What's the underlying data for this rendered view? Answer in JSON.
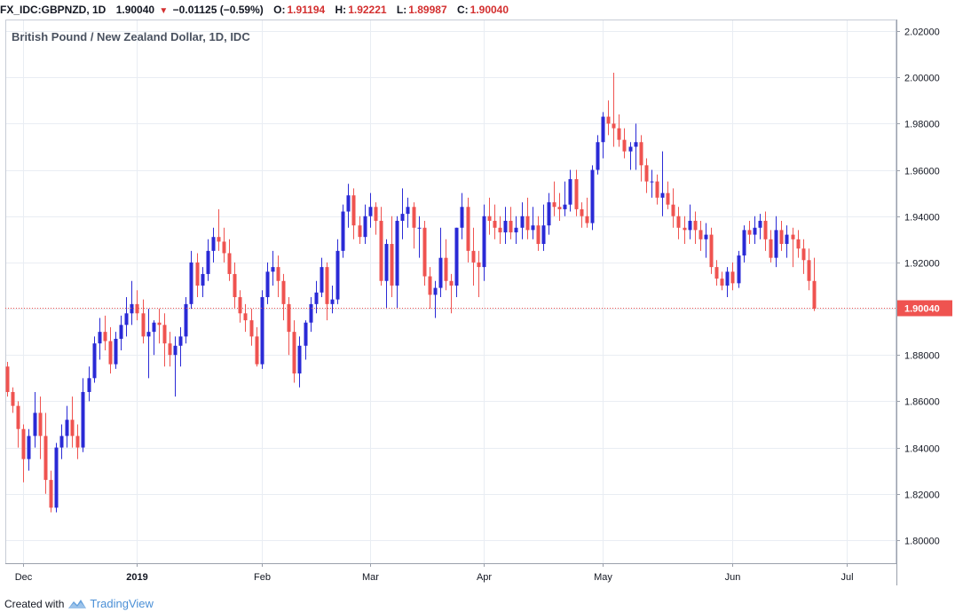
{
  "header": {
    "symbol": "FX_IDC:GBPNZD, 1D",
    "last": "1.90040",
    "change": "−0.01125 (−0.59%)",
    "open_label": "O:",
    "open": "1.91194",
    "high_label": "H:",
    "high": "1.92221",
    "low_label": "L:",
    "low": "1.89987",
    "close_label": "C:",
    "close": "1.90040",
    "direction_icon": "triangle-down-icon"
  },
  "footer": {
    "created_with": "Created with",
    "brand": "TradingView",
    "logo_icon": "tradingview-logo-icon"
  },
  "colors": {
    "up": "#2a2ad6",
    "down": "#ef5350",
    "grid": "#e9edf3",
    "axis_text": "#131722",
    "price_tag": "#ef5350"
  },
  "chart_data": {
    "type": "candlestick",
    "title": "British Pound / New Zealand Dollar, 1D, IDC",
    "ylim": [
      1.79,
      2.025
    ],
    "y_ticks": [
      1.8,
      1.82,
      1.84,
      1.86,
      1.88,
      1.9,
      1.92,
      1.94,
      1.96,
      1.98,
      2.0,
      2.02
    ],
    "y_tick_labels": [
      "1.80000",
      "1.82000",
      "1.84000",
      "1.86000",
      "1.88000",
      "1.90000",
      "1.92000",
      "1.94000",
      "1.96000",
      "1.98000",
      "2.00000",
      "2.02000"
    ],
    "x_labels": [
      {
        "text": "Dec",
        "index": 3
      },
      {
        "text": "2019",
        "index": 24
      },
      {
        "text": "Feb",
        "index": 47
      },
      {
        "text": "Mar",
        "index": 67
      },
      {
        "text": "Apr",
        "index": 88
      },
      {
        "text": "May",
        "index": 110
      },
      {
        "text": "Jun",
        "index": 134
      },
      {
        "text": "Jul",
        "index": 155
      }
    ],
    "last_price": 1.9004,
    "last_price_label": "1.90040",
    "grid": true,
    "candles": [
      [
        1.875,
        1.877,
        1.862,
        1.864
      ],
      [
        1.864,
        1.866,
        1.855,
        1.858
      ],
      [
        1.858,
        1.86,
        1.84,
        1.848
      ],
      [
        1.848,
        1.85,
        1.825,
        1.835
      ],
      [
        1.835,
        1.848,
        1.83,
        1.845
      ],
      [
        1.845,
        1.864,
        1.84,
        1.855
      ],
      [
        1.855,
        1.862,
        1.835,
        1.845
      ],
      [
        1.845,
        1.855,
        1.82,
        1.826
      ],
      [
        1.826,
        1.83,
        1.812,
        1.814
      ],
      [
        1.814,
        1.842,
        1.812,
        1.84
      ],
      [
        1.84,
        1.85,
        1.835,
        1.845
      ],
      [
        1.845,
        1.858,
        1.84,
        1.852
      ],
      [
        1.852,
        1.862,
        1.84,
        1.845
      ],
      [
        1.845,
        1.85,
        1.835,
        1.84
      ],
      [
        1.84,
        1.87,
        1.838,
        1.864
      ],
      [
        1.864,
        1.875,
        1.86,
        1.87
      ],
      [
        1.87,
        1.888,
        1.868,
        1.885
      ],
      [
        1.885,
        1.896,
        1.878,
        1.89
      ],
      [
        1.89,
        1.897,
        1.882,
        1.886
      ],
      [
        1.886,
        1.892,
        1.872,
        1.876
      ],
      [
        1.876,
        1.89,
        1.874,
        1.887
      ],
      [
        1.887,
        1.897,
        1.882,
        1.893
      ],
      [
        1.893,
        1.905,
        1.888,
        1.898
      ],
      [
        1.898,
        1.912,
        1.893,
        1.902
      ],
      [
        1.902,
        1.908,
        1.895,
        1.898
      ],
      [
        1.898,
        1.904,
        1.885,
        1.888
      ],
      [
        1.888,
        1.9,
        1.87,
        1.89
      ],
      [
        1.89,
        1.895,
        1.88,
        1.894
      ],
      [
        1.894,
        1.9,
        1.885,
        1.893
      ],
      [
        1.893,
        1.898,
        1.875,
        1.885
      ],
      [
        1.885,
        1.89,
        1.875,
        1.88
      ],
      [
        1.88,
        1.888,
        1.862,
        1.884
      ],
      [
        1.884,
        1.892,
        1.875,
        1.888
      ],
      [
        1.888,
        1.905,
        1.885,
        1.902
      ],
      [
        1.902,
        1.925,
        1.9,
        1.92
      ],
      [
        1.92,
        1.924,
        1.905,
        1.91
      ],
      [
        1.91,
        1.918,
        1.905,
        1.915
      ],
      [
        1.915,
        1.93,
        1.912,
        1.925
      ],
      [
        1.925,
        1.935,
        1.92,
        1.931
      ],
      [
        1.931,
        1.943,
        1.925,
        1.929
      ],
      [
        1.929,
        1.935,
        1.92,
        1.924
      ],
      [
        1.924,
        1.93,
        1.912,
        1.915
      ],
      [
        1.915,
        1.92,
        1.9,
        1.905
      ],
      [
        1.905,
        1.908,
        1.894,
        1.898
      ],
      [
        1.898,
        1.902,
        1.89,
        1.895
      ],
      [
        1.895,
        1.9,
        1.884,
        1.888
      ],
      [
        1.888,
        1.892,
        1.875,
        1.876
      ],
      [
        1.876,
        1.908,
        1.874,
        1.905
      ],
      [
        1.905,
        1.92,
        1.902,
        1.916
      ],
      [
        1.916,
        1.925,
        1.91,
        1.918
      ],
      [
        1.918,
        1.923,
        1.905,
        1.912
      ],
      [
        1.912,
        1.915,
        1.895,
        1.902
      ],
      [
        1.902,
        1.905,
        1.88,
        1.89
      ],
      [
        1.89,
        1.895,
        1.868,
        1.872
      ],
      [
        1.872,
        1.888,
        1.866,
        1.884
      ],
      [
        1.884,
        1.895,
        1.878,
        1.894
      ],
      [
        1.894,
        1.905,
        1.89,
        1.902
      ],
      [
        1.902,
        1.912,
        1.898,
        1.907
      ],
      [
        1.907,
        1.922,
        1.905,
        1.918
      ],
      [
        1.918,
        1.92,
        1.895,
        1.902
      ],
      [
        1.902,
        1.91,
        1.898,
        1.904
      ],
      [
        1.904,
        1.93,
        1.902,
        1.925
      ],
      [
        1.925,
        1.945,
        1.922,
        1.942
      ],
      [
        1.942,
        1.954,
        1.935,
        1.949
      ],
      [
        1.949,
        1.952,
        1.93,
        1.936
      ],
      [
        1.936,
        1.94,
        1.928,
        1.931
      ],
      [
        1.931,
        1.945,
        1.928,
        1.94
      ],
      [
        1.94,
        1.95,
        1.935,
        1.944
      ],
      [
        1.944,
        1.946,
        1.932,
        1.938
      ],
      [
        1.938,
        1.944,
        1.91,
        1.912
      ],
      [
        1.912,
        1.93,
        1.9,
        1.928
      ],
      [
        1.928,
        1.94,
        1.905,
        1.91
      ],
      [
        1.91,
        1.94,
        1.9,
        1.938
      ],
      [
        1.938,
        1.952,
        1.93,
        1.941
      ],
      [
        1.941,
        1.948,
        1.935,
        1.944
      ],
      [
        1.944,
        1.946,
        1.926,
        1.935
      ],
      [
        1.935,
        1.94,
        1.922,
        1.935
      ],
      [
        1.935,
        1.938,
        1.91,
        1.914
      ],
      [
        1.914,
        1.918,
        1.9,
        1.906
      ],
      [
        1.906,
        1.912,
        1.896,
        1.909
      ],
      [
        1.909,
        1.935,
        1.905,
        1.922
      ],
      [
        1.922,
        1.93,
        1.908,
        1.912
      ],
      [
        1.912,
        1.915,
        1.898,
        1.91
      ],
      [
        1.91,
        1.935,
        1.905,
        1.935
      ],
      [
        1.935,
        1.95,
        1.93,
        1.944
      ],
      [
        1.944,
        1.948,
        1.92,
        1.925
      ],
      [
        1.925,
        1.935,
        1.91,
        1.92
      ],
      [
        1.92,
        1.925,
        1.905,
        1.918
      ],
      [
        1.918,
        1.945,
        1.912,
        1.94
      ],
      [
        1.94,
        1.948,
        1.932,
        1.938
      ],
      [
        1.938,
        1.945,
        1.93,
        1.935
      ],
      [
        1.935,
        1.94,
        1.928,
        1.933
      ],
      [
        1.933,
        1.944,
        1.928,
        1.938
      ],
      [
        1.938,
        1.944,
        1.93,
        1.933
      ],
      [
        1.933,
        1.94,
        1.928,
        1.935
      ],
      [
        1.935,
        1.946,
        1.93,
        1.94
      ],
      [
        1.94,
        1.948,
        1.93,
        1.934
      ],
      [
        1.934,
        1.944,
        1.93,
        1.936
      ],
      [
        1.936,
        1.94,
        1.925,
        1.928
      ],
      [
        1.928,
        1.945,
        1.925,
        1.936
      ],
      [
        1.936,
        1.95,
        1.932,
        1.946
      ],
      [
        1.946,
        1.955,
        1.94,
        1.944
      ],
      [
        1.944,
        1.95,
        1.938,
        1.943
      ],
      [
        1.943,
        1.955,
        1.94,
        1.945
      ],
      [
        1.945,
        1.96,
        1.942,
        1.956
      ],
      [
        1.956,
        1.96,
        1.94,
        1.943
      ],
      [
        1.943,
        1.946,
        1.935,
        1.94
      ],
      [
        1.94,
        1.948,
        1.935,
        1.937
      ],
      [
        1.937,
        1.962,
        1.934,
        1.96
      ],
      [
        1.96,
        1.975,
        1.958,
        1.972
      ],
      [
        1.972,
        1.985,
        1.965,
        1.983
      ],
      [
        1.983,
        1.99,
        1.975,
        1.98
      ],
      [
        1.98,
        2.002,
        1.97,
        1.978
      ],
      [
        1.978,
        1.984,
        1.97,
        1.973
      ],
      [
        1.973,
        1.978,
        1.965,
        1.968
      ],
      [
        1.968,
        1.972,
        1.96,
        1.97
      ],
      [
        1.97,
        1.98,
        1.96,
        1.972
      ],
      [
        1.972,
        1.975,
        1.955,
        1.962
      ],
      [
        1.962,
        1.965,
        1.95,
        1.955
      ],
      [
        1.955,
        1.96,
        1.948,
        1.955
      ],
      [
        1.955,
        1.958,
        1.945,
        1.948
      ],
      [
        1.948,
        1.968,
        1.94,
        1.95
      ],
      [
        1.95,
        1.955,
        1.943,
        1.945
      ],
      [
        1.945,
        1.952,
        1.935,
        1.94
      ],
      [
        1.94,
        1.944,
        1.93,
        1.935
      ],
      [
        1.935,
        1.94,
        1.928,
        1.934
      ],
      [
        1.934,
        1.945,
        1.93,
        1.938
      ],
      [
        1.938,
        1.942,
        1.928,
        1.934
      ],
      [
        1.934,
        1.938,
        1.925,
        1.93
      ],
      [
        1.93,
        1.937,
        1.922,
        1.932
      ],
      [
        1.932,
        1.935,
        1.915,
        1.918
      ],
      [
        1.918,
        1.921,
        1.91,
        1.913
      ],
      [
        1.913,
        1.916,
        1.908,
        1.91
      ],
      [
        1.91,
        1.918,
        1.905,
        1.916
      ],
      [
        1.916,
        1.92,
        1.908,
        1.911
      ],
      [
        1.911,
        1.925,
        1.909,
        1.923
      ],
      [
        1.923,
        1.936,
        1.92,
        1.934
      ],
      [
        1.934,
        1.938,
        1.928,
        1.932
      ],
      [
        1.932,
        1.94,
        1.928,
        1.935
      ],
      [
        1.935,
        1.941,
        1.93,
        1.938
      ],
      [
        1.938,
        1.942,
        1.925,
        1.93
      ],
      [
        1.93,
        1.934,
        1.92,
        1.922
      ],
      [
        1.922,
        1.94,
        1.918,
        1.934
      ],
      [
        1.934,
        1.938,
        1.925,
        1.928
      ],
      [
        1.928,
        1.936,
        1.922,
        1.932
      ],
      [
        1.932,
        1.935,
        1.918,
        1.93
      ],
      [
        1.93,
        1.934,
        1.922,
        1.926
      ],
      [
        1.926,
        1.93,
        1.915,
        1.921
      ],
      [
        1.921,
        1.926,
        1.908,
        1.912
      ],
      [
        1.912,
        1.922,
        1.899,
        1.9
      ]
    ]
  }
}
